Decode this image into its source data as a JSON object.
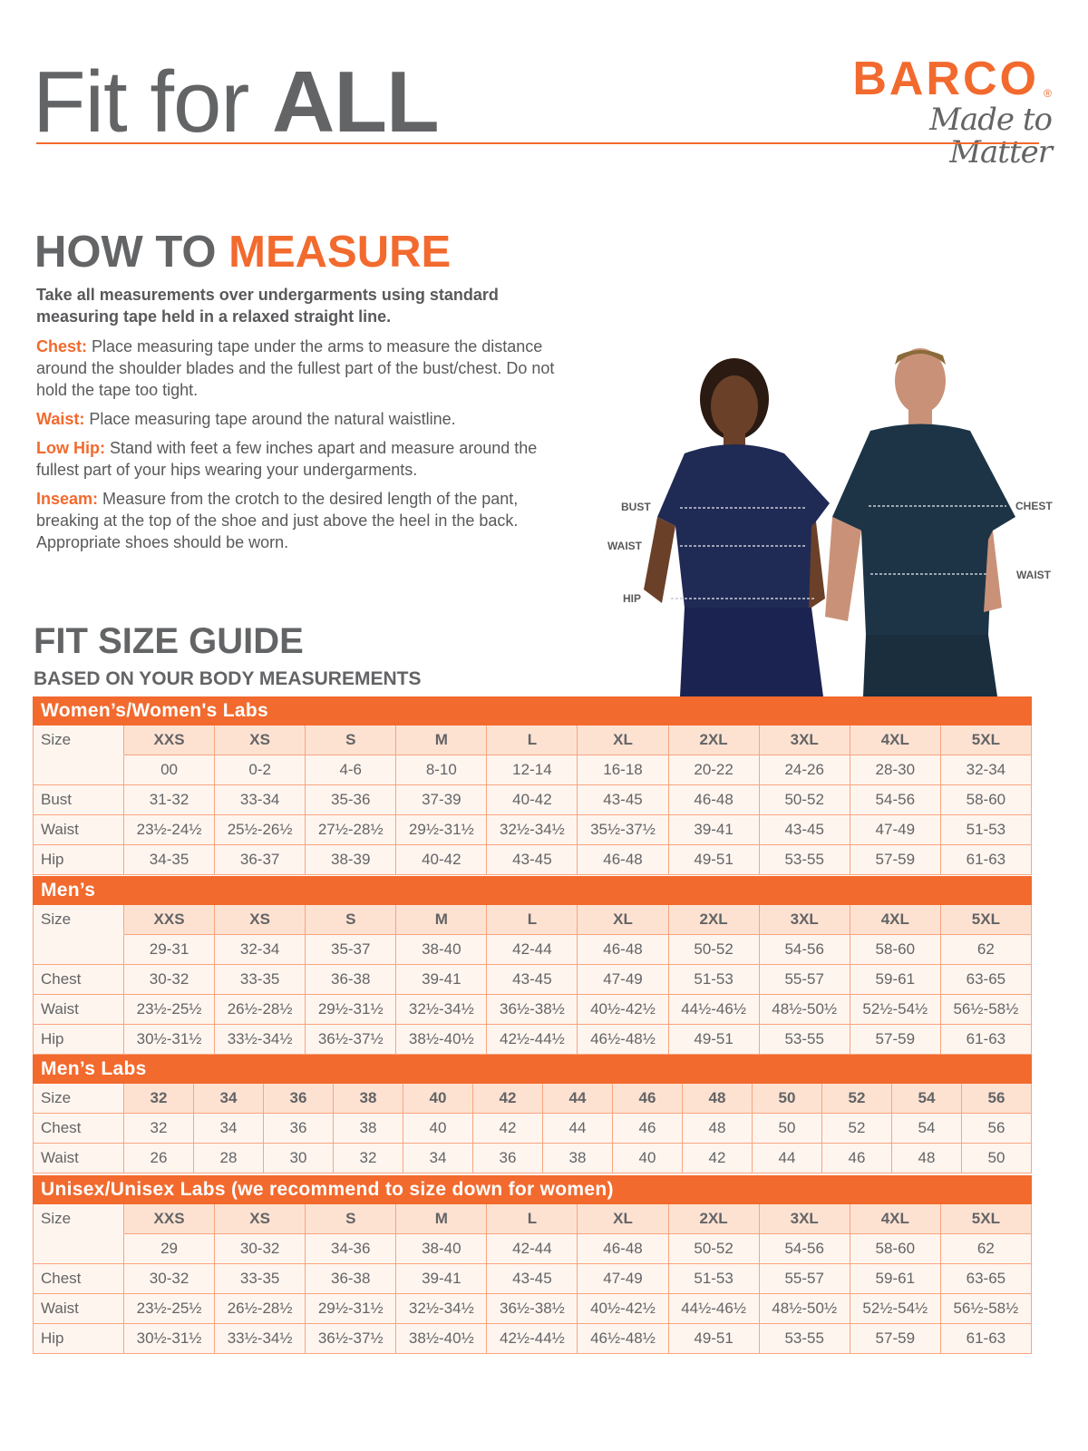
{
  "header": {
    "title_regular": "Fit for ",
    "title_bold": "ALL",
    "logo": {
      "brand": "BARCO",
      "registered": "®",
      "tagline": "Made to Matter"
    }
  },
  "how_to_measure": {
    "title_part1": "HOW TO ",
    "title_part2": "MEASURE",
    "intro": "Take all measurements over undergarments using standard measuring tape held in a relaxed straight line.",
    "items": [
      {
        "key": "Chest:",
        "text": "Place measuring tape under the arms to measure the distance around the shoulder blades and the fullest part of the bust/chest. Do not hold the tape too tight."
      },
      {
        "key": "Waist:",
        "text": "Place measuring tape around the natural waistline."
      },
      {
        "key": "Low Hip:",
        "text": "Stand with feet a few inches apart and measure around the fullest part of your hips wearing your undergarments."
      },
      {
        "key": "Inseam:",
        "text": "Measure from the crotch to the desired length of the pant, breaking at the top of the shoe and just above the heel in the back. Appropriate shoes should be worn."
      }
    ]
  },
  "photo_labels": {
    "bust": "BUST",
    "waist_w": "WAIST",
    "hip": "HIP",
    "chest": "CHEST",
    "waist_m": "WAIST"
  },
  "fit_guide": {
    "title": "FIT SIZE GUIDE",
    "subtitle": "BASED ON YOUR BODY MEASUREMENTS",
    "sections": [
      {
        "title": "Women’s/Women's Labs",
        "size_label": "Size",
        "sizes": [
          "XXS",
          "XS",
          "S",
          "M",
          "L",
          "XL",
          "2XL",
          "3XL",
          "4XL",
          "5XL"
        ],
        "numeric": [
          "00",
          "0-2",
          "4-6",
          "8-10",
          "12-14",
          "16-18",
          "20-22",
          "24-26",
          "28-30",
          "32-34"
        ],
        "rows": [
          {
            "label": "Bust",
            "values": [
              "31-32",
              "33-34",
              "35-36",
              "37-39",
              "40-42",
              "43-45",
              "46-48",
              "50-52",
              "54-56",
              "58-60"
            ]
          },
          {
            "label": "Waist",
            "values": [
              "23½-24½",
              "25½-26½",
              "27½-28½",
              "29½-31½",
              "32½-34½",
              "35½-37½",
              "39-41",
              "43-45",
              "47-49",
              "51-53"
            ]
          },
          {
            "label": "Hip",
            "values": [
              "34-35",
              "36-37",
              "38-39",
              "40-42",
              "43-45",
              "46-48",
              "49-51",
              "53-55",
              "57-59",
              "61-63"
            ]
          }
        ]
      },
      {
        "title": "Men’s",
        "size_label": "Size",
        "sizes": [
          "XXS",
          "XS",
          "S",
          "M",
          "L",
          "XL",
          "2XL",
          "3XL",
          "4XL",
          "5XL"
        ],
        "numeric": [
          "29-31",
          "32-34",
          "35-37",
          "38-40",
          "42-44",
          "46-48",
          "50-52",
          "54-56",
          "58-60",
          "62"
        ],
        "rows": [
          {
            "label": "Chest",
            "values": [
              "30-32",
              "33-35",
              "36-38",
              "39-41",
              "43-45",
              "47-49",
              "51-53",
              "55-57",
              "59-61",
              "63-65"
            ]
          },
          {
            "label": "Waist",
            "values": [
              "23½-25½",
              "26½-28½",
              "29½-31½",
              "32½-34½",
              "36½-38½",
              "40½-42½",
              "44½-46½",
              "48½-50½",
              "52½-54½",
              "56½-58½"
            ]
          },
          {
            "label": "Hip",
            "values": [
              "30½-31½",
              "33½-34½",
              "36½-37½",
              "38½-40½",
              "42½-44½",
              "46½-48½",
              "49-51",
              "53-55",
              "57-59",
              "61-63"
            ]
          }
        ]
      },
      {
        "title": "Men’s Labs",
        "size_label": "Size",
        "sizes": [
          "32",
          "34",
          "36",
          "38",
          "40",
          "42",
          "44",
          "46",
          "48",
          "50",
          "52",
          "54",
          "56"
        ],
        "rows": [
          {
            "label": "Chest",
            "values": [
              "32",
              "34",
              "36",
              "38",
              "40",
              "42",
              "44",
              "46",
              "48",
              "50",
              "52",
              "54",
              "56"
            ]
          },
          {
            "label": "Waist",
            "values": [
              "26",
              "28",
              "30",
              "32",
              "34",
              "36",
              "38",
              "40",
              "42",
              "44",
              "46",
              "48",
              "50"
            ]
          }
        ]
      },
      {
        "title": "Unisex/Unisex Labs (we recommend to size down for women)",
        "size_label": "Size",
        "sizes": [
          "XXS",
          "XS",
          "S",
          "M",
          "L",
          "XL",
          "2XL",
          "3XL",
          "4XL",
          "5XL"
        ],
        "numeric": [
          "29",
          "30-32",
          "34-36",
          "38-40",
          "42-44",
          "46-48",
          "50-52",
          "54-56",
          "58-60",
          "62"
        ],
        "rows": [
          {
            "label": "Chest",
            "values": [
              "30-32",
              "33-35",
              "36-38",
              "39-41",
              "43-45",
              "47-49",
              "51-53",
              "55-57",
              "59-61",
              "63-65"
            ]
          },
          {
            "label": "Waist",
            "values": [
              "23½-25½",
              "26½-28½",
              "29½-31½",
              "32½-34½",
              "36½-38½",
              "40½-42½",
              "44½-46½",
              "48½-50½",
              "52½-54½",
              "56½-58½"
            ]
          },
          {
            "label": "Hip",
            "values": [
              "30½-31½",
              "33½-34½",
              "36½-37½",
              "38½-40½",
              "42½-44½",
              "46½-48½",
              "49-51",
              "53-55",
              "57-59",
              "61-63"
            ]
          }
        ]
      }
    ]
  },
  "colors": {
    "accent": "#f26a2e",
    "text_gray": "#636466",
    "header_cell": "#fde2d2",
    "cell_bg": "#fff5ef",
    "scrub_navy": "#1f2a55",
    "scrub_teal": "#1d3446"
  }
}
